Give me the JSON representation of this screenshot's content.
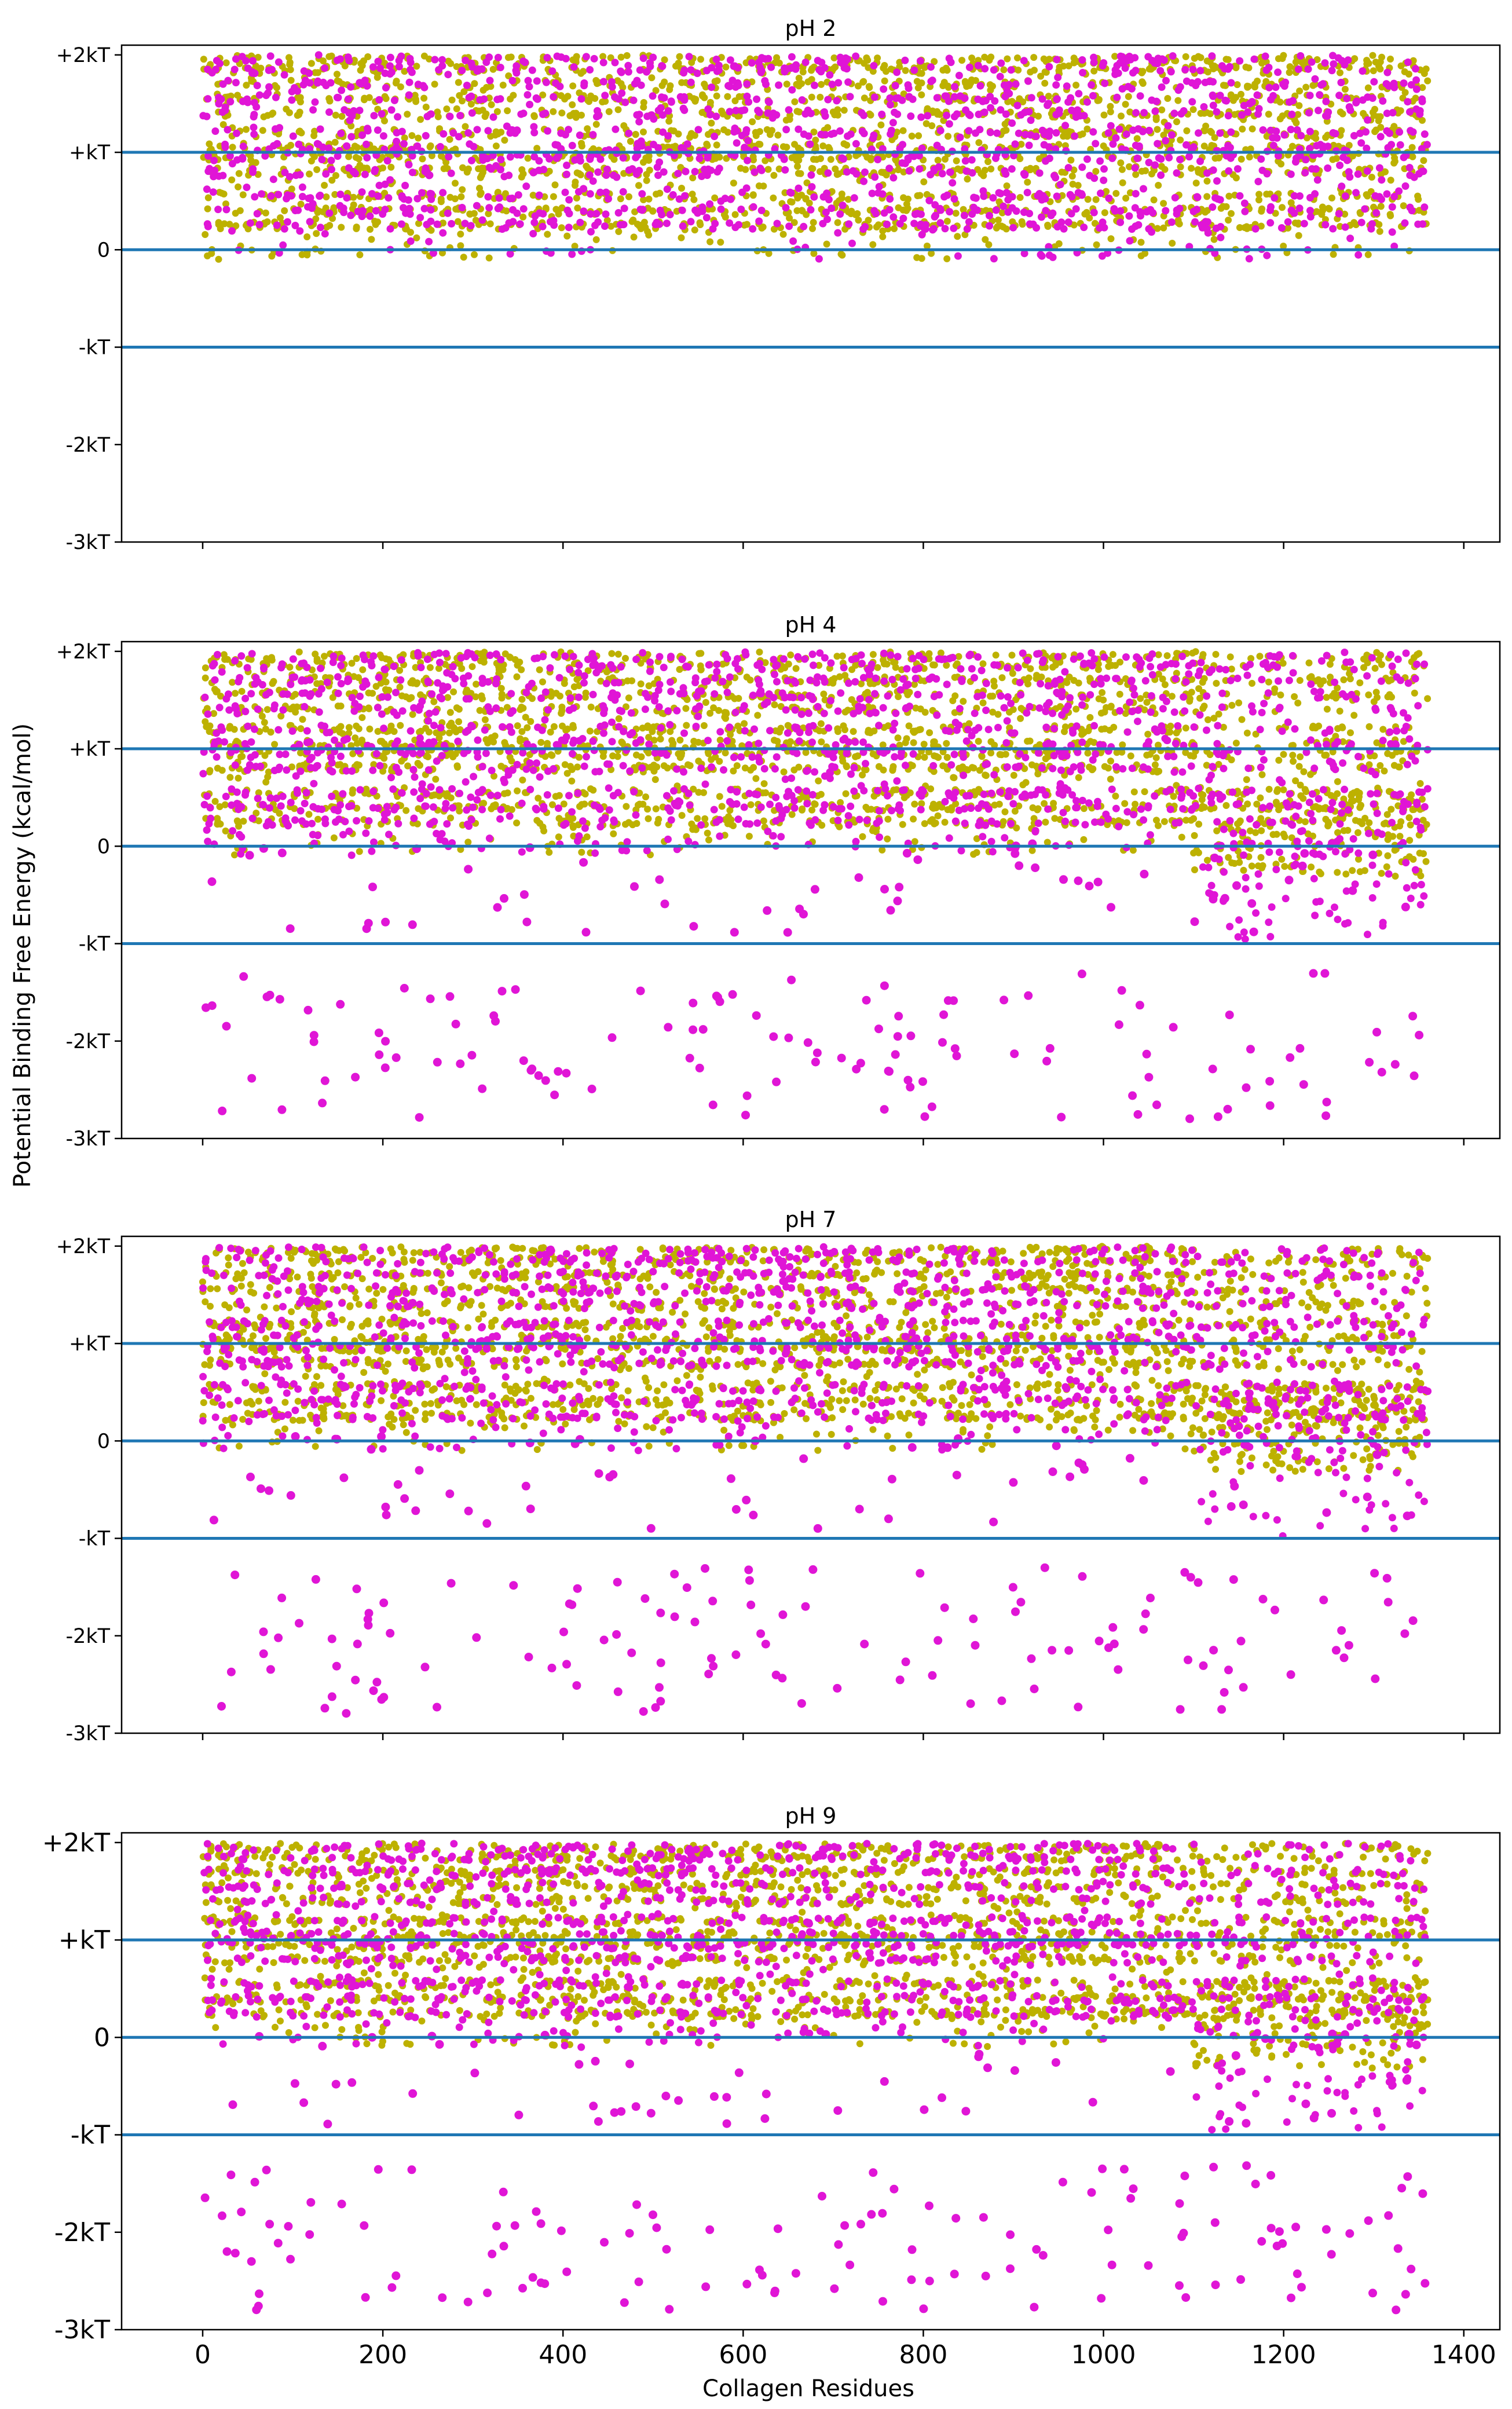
{
  "figure": {
    "ylabel": "Potential Binding Free Energy (kcal/mol)",
    "xlabel": "Collagen Residues"
  },
  "colors": {
    "series_a": "#e015d6",
    "series_b": "#bdb100",
    "reference_line": "#1f77b4",
    "axes": "#000000"
  },
  "chart_data": [
    {
      "type": "scatter",
      "title": "pH 2",
      "xlim": [
        -90,
        1440
      ],
      "ylim": [
        -3,
        2.1
      ],
      "x_ticks": [
        0,
        200,
        400,
        600,
        800,
        1000,
        1200,
        1400
      ],
      "x_tick_labels": [],
      "y_ticks": [
        2,
        1,
        0,
        -1,
        -2,
        -3
      ],
      "y_tick_labels": [
        "+2kT",
        "+kT",
        "0",
        "-kT",
        "-2kT",
        "-3kT"
      ],
      "reference_lines_y": [
        1,
        0,
        -1
      ],
      "series": [
        {
          "name": "magenta",
          "color": "#e015d6",
          "n_points": 1500,
          "x_range": [
            0,
            1360
          ],
          "y_range": [
            -0.3,
            2.0
          ],
          "clusters": []
        },
        {
          "name": "olive",
          "color": "#bdb100",
          "n_points": 2400,
          "x_range": [
            0,
            1360
          ],
          "y_range": [
            -0.25,
            2.0
          ]
        }
      ]
    },
    {
      "type": "scatter",
      "title": "pH 4",
      "xlim": [
        -90,
        1440
      ],
      "ylim": [
        -3,
        2.1
      ],
      "x_ticks": [
        0,
        200,
        400,
        600,
        800,
        1000,
        1200,
        1400
      ],
      "x_tick_labels": [],
      "y_ticks": [
        2,
        1,
        0,
        -1,
        -2,
        -3
      ],
      "y_tick_labels": [
        "+2kT",
        "+kT",
        "0",
        "-kT",
        "-2kT",
        "-3kT"
      ],
      "reference_lines_y": [
        1,
        0,
        -1
      ],
      "series": [
        {
          "name": "magenta",
          "color": "#e015d6",
          "n_points": 1500,
          "x_range": [
            0,
            1360
          ],
          "y_range": [
            -2.8,
            2.0
          ],
          "clusters": [
            [
              -2.8,
              -1.3,
              130
            ],
            [
              -0.9,
              0.05,
              60
            ]
          ]
        },
        {
          "name": "olive",
          "color": "#bdb100",
          "n_points": 2400,
          "x_range": [
            0,
            1360
          ],
          "y_range": [
            -0.9,
            2.0
          ]
        }
      ]
    },
    {
      "type": "scatter",
      "title": "pH 7",
      "xlim": [
        -90,
        1440
      ],
      "ylim": [
        -3,
        2.1
      ],
      "x_ticks": [
        0,
        200,
        400,
        600,
        800,
        1000,
        1200,
        1400
      ],
      "x_tick_labels": [],
      "y_ticks": [
        2,
        1,
        0,
        -1,
        -2,
        -3
      ],
      "y_tick_labels": [
        "+2kT",
        "+kT",
        "0",
        "-kT",
        "-2kT",
        "-3kT"
      ],
      "reference_lines_y": [
        1,
        0,
        -1
      ],
      "series": [
        {
          "name": "magenta",
          "color": "#e015d6",
          "n_points": 1500,
          "x_range": [
            0,
            1360
          ],
          "y_range": [
            -2.8,
            2.0
          ],
          "clusters": [
            [
              -2.8,
              -1.3,
              130
            ],
            [
              -0.9,
              0.05,
              60
            ]
          ]
        },
        {
          "name": "olive",
          "color": "#bdb100",
          "n_points": 2400,
          "x_range": [
            0,
            1360
          ],
          "y_range": [
            -0.9,
            2.0
          ]
        }
      ]
    },
    {
      "type": "scatter",
      "title": "pH 9",
      "xlim": [
        -90,
        1440
      ],
      "ylim": [
        -3,
        2.1
      ],
      "x_ticks": [
        0,
        200,
        400,
        600,
        800,
        1000,
        1200,
        1400
      ],
      "x_tick_labels": [
        "0",
        "200",
        "400",
        "600",
        "800",
        "1000",
        "1200",
        "1400"
      ],
      "y_ticks": [
        2,
        1,
        0,
        -1,
        -2,
        -3
      ],
      "y_tick_labels": [
        "+2kT",
        "+kT",
        "0",
        "-kT",
        "-2kT",
        "-3kT"
      ],
      "reference_lines_y": [
        1,
        0,
        -1
      ],
      "series": [
        {
          "name": "magenta",
          "color": "#e015d6",
          "n_points": 1500,
          "x_range": [
            0,
            1360
          ],
          "y_range": [
            -2.8,
            2.0
          ],
          "clusters": [
            [
              -2.8,
              -1.3,
              130
            ],
            [
              -0.9,
              0.05,
              60
            ]
          ]
        },
        {
          "name": "olive",
          "color": "#bdb100",
          "n_points": 2400,
          "x_range": [
            0,
            1360
          ],
          "y_range": [
            -0.9,
            2.0
          ]
        }
      ]
    }
  ]
}
